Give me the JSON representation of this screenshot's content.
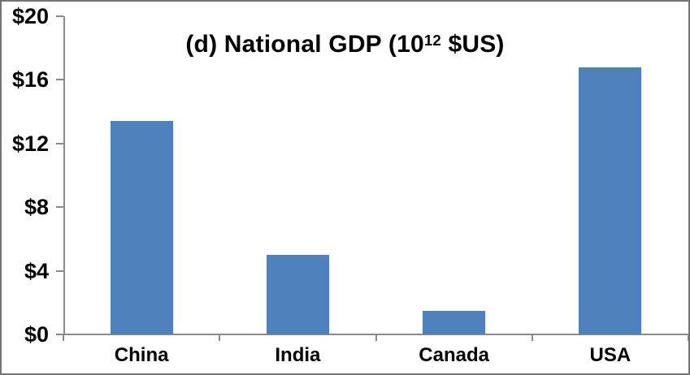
{
  "title": {
    "prefix": "(d) National GDP (10",
    "superscript": "12",
    "suffix": " $US)"
  },
  "chart_data": {
    "type": "bar",
    "title": "(d) National GDP (10^12 $US)",
    "categories": [
      "China",
      "India",
      "Canada",
      "USA"
    ],
    "values": [
      13.4,
      5.0,
      1.5,
      16.8
    ],
    "ylim": [
      0,
      20
    ],
    "ytick_step": 4,
    "ytick_labels": [
      "$0",
      "$4",
      "$8",
      "$12",
      "$16",
      "$20"
    ],
    "xlabel": "",
    "ylabel": "",
    "grid": false,
    "legend": "none",
    "bar_color": "#4F81BD",
    "axis_color": "#8A8A8A",
    "text_color": "#000000"
  }
}
